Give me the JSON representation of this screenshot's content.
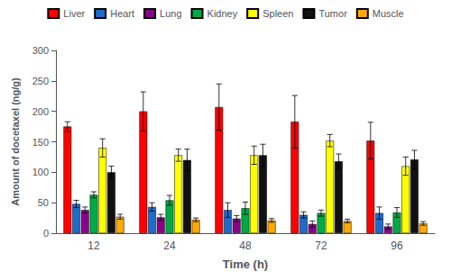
{
  "chart_data": {
    "type": "bar",
    "xlabel": "Time (h)",
    "ylabel": "Amount of docetaxel (ng/g)",
    "categories": [
      "12",
      "24",
      "48",
      "72",
      "96"
    ],
    "series": [
      {
        "name": "Liver",
        "color": "#ff0000",
        "values": [
          175,
          200,
          207,
          183,
          152
        ],
        "errors": [
          8,
          32,
          38,
          43,
          30
        ]
      },
      {
        "name": "Heart",
        "color": "#1e6bcc",
        "values": [
          48,
          43,
          38,
          30,
          33
        ],
        "errors": [
          6,
          7,
          12,
          5,
          10
        ]
      },
      {
        "name": "Lung",
        "color": "#8b008b",
        "values": [
          38,
          26,
          24,
          15,
          11
        ],
        "errors": [
          5,
          5,
          5,
          5,
          4
        ]
      },
      {
        "name": "Kidney",
        "color": "#00aa44",
        "values": [
          63,
          54,
          41,
          33,
          34
        ],
        "errors": [
          5,
          8,
          10,
          5,
          8
        ]
      },
      {
        "name": "Spleen",
        "color": "#ffff00",
        "values": [
          140,
          128,
          128,
          152,
          110
        ],
        "errors": [
          15,
          10,
          15,
          10,
          15
        ]
      },
      {
        "name": "Tumor",
        "color": "#111111",
        "values": [
          100,
          120,
          128,
          118,
          121
        ],
        "errors": [
          10,
          18,
          18,
          12,
          15
        ]
      },
      {
        "name": "Muscle",
        "color": "#ffaa00",
        "values": [
          27,
          22,
          21,
          20,
          16
        ],
        "errors": [
          4,
          3,
          3,
          3,
          3
        ]
      }
    ],
    "ylim": [
      0,
      300
    ],
    "yticks": [
      0,
      50,
      100,
      150,
      200,
      250,
      300
    ],
    "grid": false,
    "legend": "top"
  }
}
